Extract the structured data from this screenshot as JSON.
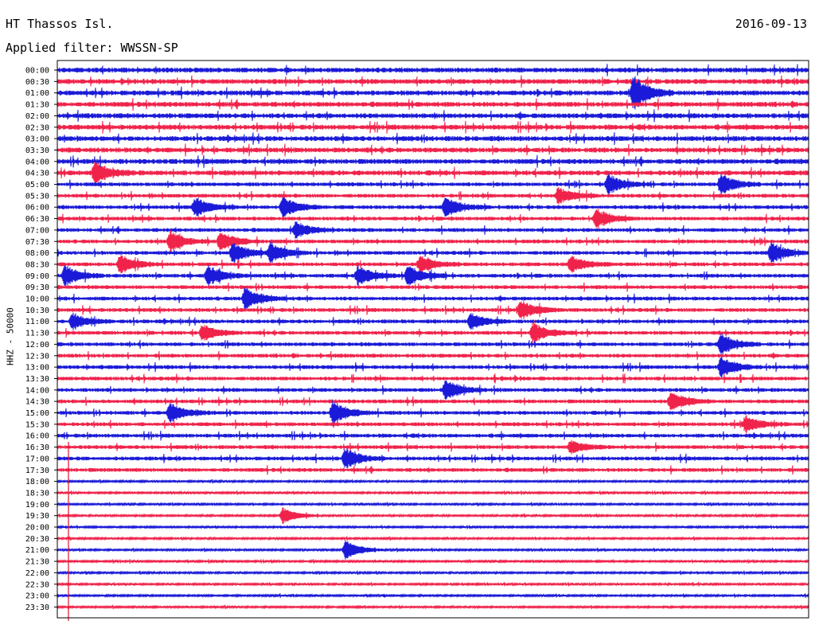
{
  "header": {
    "station": "HT Thassos Isl.",
    "date": "2016-09-13",
    "filter": "Applied filter: WWSSN-SP"
  },
  "colors": {
    "odd": "#1a1ad8",
    "even": "#f0234b",
    "frame": "#000000",
    "marker": "#e0102e"
  },
  "chart_data": {
    "type": "line",
    "title": "HT Thassos Isl.",
    "ylabel": "HHZ - 50000",
    "row_labels": [
      "00:00",
      "00:30",
      "01:00",
      "01:30",
      "02:00",
      "02:30",
      "03:00",
      "03:30",
      "04:00",
      "04:30",
      "05:00",
      "05:30",
      "06:00",
      "06:30",
      "07:00",
      "07:30",
      "08:00",
      "08:30",
      "09:00",
      "09:30",
      "10:00",
      "10:30",
      "11:00",
      "11:30",
      "12:00",
      "12:30",
      "13:00",
      "13:30",
      "14:00",
      "14:30",
      "15:00",
      "15:30",
      "16:00",
      "16:30",
      "17:00",
      "17:30",
      "18:00",
      "18:30",
      "19:00",
      "19:30",
      "20:00",
      "20:30",
      "21:00",
      "21:30",
      "22:00",
      "22:30",
      "23:00",
      "23:30"
    ],
    "row_colors": [
      "blue",
      "red",
      "blue",
      "red",
      "blue",
      "red",
      "blue",
      "red",
      "blue",
      "red",
      "blue",
      "red",
      "blue",
      "red",
      "blue",
      "red",
      "blue",
      "red",
      "blue",
      "red",
      "blue",
      "red",
      "blue",
      "red",
      "blue",
      "red",
      "blue",
      "red",
      "blue",
      "red",
      "blue",
      "red",
      "blue",
      "red",
      "blue",
      "red",
      "blue",
      "red",
      "blue",
      "red",
      "blue",
      "red",
      "blue",
      "red",
      "blue",
      "red",
      "blue",
      "red"
    ],
    "minutes_per_row": 30,
    "events": [
      {
        "row": 2,
        "minute": 23,
        "amp": 1.8
      },
      {
        "row": 9,
        "minute": 1.5,
        "amp": 1.0
      },
      {
        "row": 10,
        "minute": 22,
        "amp": 1.0
      },
      {
        "row": 10,
        "minute": 26.5,
        "amp": 1.0
      },
      {
        "row": 11,
        "minute": 20,
        "amp": 0.8
      },
      {
        "row": 12,
        "minute": 5.5,
        "amp": 1.0
      },
      {
        "row": 12,
        "minute": 9,
        "amp": 1.0
      },
      {
        "row": 12,
        "minute": 15.5,
        "amp": 1.0
      },
      {
        "row": 13,
        "minute": 21.5,
        "amp": 1.0
      },
      {
        "row": 14,
        "minute": 9.5,
        "amp": 0.8
      },
      {
        "row": 15,
        "minute": 4.5,
        "amp": 1.0
      },
      {
        "row": 15,
        "minute": 6.5,
        "amp": 1.0
      },
      {
        "row": 16,
        "minute": 7,
        "amp": 1.0
      },
      {
        "row": 16,
        "minute": 8.5,
        "amp": 1.0
      },
      {
        "row": 16,
        "minute": 28.5,
        "amp": 1.0
      },
      {
        "row": 17,
        "minute": 2.5,
        "amp": 1.0
      },
      {
        "row": 17,
        "minute": 14.5,
        "amp": 0.8
      },
      {
        "row": 17,
        "minute": 20.5,
        "amp": 0.8
      },
      {
        "row": 18,
        "minute": 0.3,
        "amp": 1.0
      },
      {
        "row": 18,
        "minute": 6,
        "amp": 1.0
      },
      {
        "row": 18,
        "minute": 12,
        "amp": 1.0
      },
      {
        "row": 18,
        "minute": 14,
        "amp": 1.0
      },
      {
        "row": 20,
        "minute": 7.5,
        "amp": 1.2
      },
      {
        "row": 21,
        "minute": 18.5,
        "amp": 1.0
      },
      {
        "row": 22,
        "minute": 0.6,
        "amp": 0.8
      },
      {
        "row": 22,
        "minute": 16.5,
        "amp": 0.8
      },
      {
        "row": 23,
        "minute": 5.8,
        "amp": 0.8
      },
      {
        "row": 23,
        "minute": 19,
        "amp": 1.0
      },
      {
        "row": 24,
        "minute": 26.5,
        "amp": 1.0
      },
      {
        "row": 26,
        "minute": 26.5,
        "amp": 1.0
      },
      {
        "row": 28,
        "minute": 15.5,
        "amp": 1.0
      },
      {
        "row": 29,
        "minute": 24.5,
        "amp": 1.0
      },
      {
        "row": 30,
        "minute": 4.5,
        "amp": 1.0
      },
      {
        "row": 30,
        "minute": 11,
        "amp": 1.2
      },
      {
        "row": 31,
        "minute": 27.5,
        "amp": 0.8
      },
      {
        "row": 33,
        "minute": 20.5,
        "amp": 0.6
      },
      {
        "row": 34,
        "minute": 11.5,
        "amp": 1.0
      },
      {
        "row": 39,
        "minute": 9,
        "amp": 0.8
      },
      {
        "row": 42,
        "minute": 11.5,
        "amp": 1.0
      }
    ]
  }
}
